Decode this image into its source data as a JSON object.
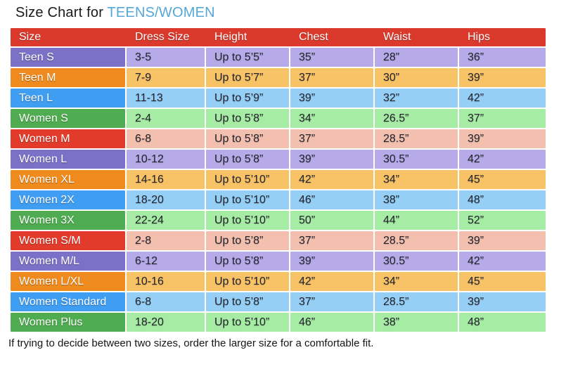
{
  "title": {
    "prefix": "Size Chart for ",
    "highlight": "TEENS/WOMEN"
  },
  "footer_note": "If trying to decide between two sizes, order the larger size for a comfortable fit.",
  "colors": {
    "header_bg": "#DB392C",
    "header_text": "#FFFFFF",
    "title_highlight": "#55A7D8",
    "row_palette": {
      "purple": {
        "label": "#7C71C6",
        "body": "#B6ABE8"
      },
      "orange": {
        "label": "#EF8A1E",
        "body": "#F8C266"
      },
      "blue": {
        "label": "#3F9DF2",
        "body": "#95CFF5"
      },
      "green": {
        "label": "#4FAC50",
        "body": "#A7ECA4"
      },
      "red": {
        "label": "#E23B2C",
        "body": "#F3C0AF"
      }
    }
  },
  "chart_data": {
    "type": "table",
    "title": "Size Chart for TEENS/WOMEN",
    "columns": [
      "Size",
      "Dress Size",
      "Height",
      "Chest",
      "Waist",
      "Hips"
    ],
    "rows": [
      {
        "size": "Teen S",
        "color": "purple",
        "values": [
          "3-5",
          "Up to 5’5”",
          "35”",
          "28”",
          "36”"
        ]
      },
      {
        "size": "Teen M",
        "color": "orange",
        "values": [
          "7-9",
          "Up to 5’7”",
          "37”",
          "30”",
          "39”"
        ]
      },
      {
        "size": "Teen L",
        "color": "blue",
        "values": [
          "11-13",
          "Up to 5’9”",
          "39”",
          "32”",
          "42”"
        ]
      },
      {
        "size": "Women S",
        "color": "green",
        "values": [
          "2-4",
          "Up to 5’8”",
          "34”",
          "26.5”",
          "37”"
        ]
      },
      {
        "size": "Women M",
        "color": "red",
        "values": [
          "6-8",
          "Up to 5’8”",
          "37”",
          "28.5”",
          "39”"
        ]
      },
      {
        "size": "Women L",
        "color": "purple",
        "values": [
          "10-12",
          "Up to 5’8”",
          "39”",
          "30.5”",
          "42”"
        ]
      },
      {
        "size": "Women XL",
        "color": "orange",
        "values": [
          "14-16",
          "Up to 5’10”",
          "42”",
          "34”",
          "45”"
        ]
      },
      {
        "size": "Women 2X",
        "color": "blue",
        "values": [
          "18-20",
          "Up to 5’10”",
          "46”",
          "38”",
          "48”"
        ]
      },
      {
        "size": "Women 3X",
        "color": "green",
        "values": [
          "22-24",
          "Up to 5’10”",
          "50”",
          "44”",
          "52”"
        ]
      },
      {
        "size": "Women S/M",
        "color": "red",
        "values": [
          "2-8",
          "Up to 5’8”",
          "37”",
          "28.5”",
          "39”"
        ]
      },
      {
        "size": "Women M/L",
        "color": "purple",
        "values": [
          "6-12",
          "Up to 5’8”",
          "39”",
          "30.5”",
          "42”"
        ]
      },
      {
        "size": "Women L/XL",
        "color": "orange",
        "values": [
          "10-16",
          "Up to 5’10”",
          "42”",
          "34”",
          "45”"
        ]
      },
      {
        "size": "Women Standard",
        "color": "blue",
        "values": [
          "6-8",
          "Up to 5’8”",
          "37”",
          "28.5”",
          "39”"
        ]
      },
      {
        "size": "Women Plus",
        "color": "green",
        "values": [
          "18-20",
          "Up to 5’10”",
          "46”",
          "38”",
          "48”"
        ]
      }
    ]
  }
}
